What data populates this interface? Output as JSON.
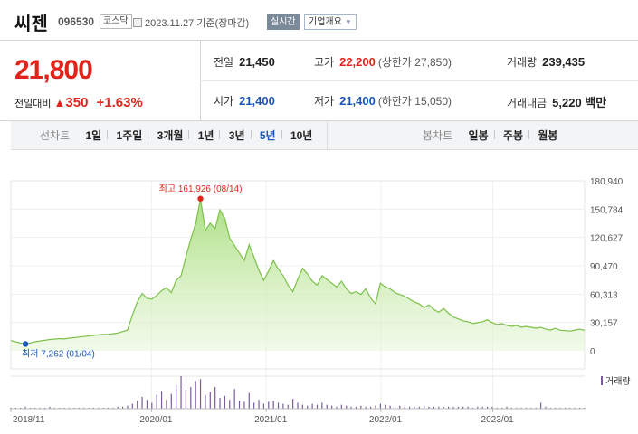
{
  "header": {
    "name": "씨젠",
    "code": "096530",
    "market": "코스닥",
    "date": "2023.11.27 기준(장마감)",
    "realtime": "실시간",
    "company_info": "기업개요"
  },
  "summary": {
    "price": "21,800",
    "change_label": "전일대비",
    "change": "350",
    "change_rate": "+1.63%",
    "prev_close_label": "전일",
    "prev_close": "21,450",
    "high_label": "고가",
    "high": "22,200",
    "upper_limit": "(상한가 27,850)",
    "volume_label": "거래량",
    "volume": "239,435",
    "open_label": "시가",
    "open": "21,400",
    "low_label": "저가",
    "low": "21,400",
    "lower_limit": "(하한가 15,050)",
    "amount_label": "거래대금",
    "amount": "5,220 백만"
  },
  "tabs": {
    "line_label": "선차트",
    "line_periods": [
      "1일",
      "1주일",
      "3개월",
      "1년",
      "3년",
      "5년",
      "10년"
    ],
    "active_period": "5년",
    "candle_label": "봉차트",
    "candle_periods": [
      "일봉",
      "주봉",
      "월봉"
    ]
  },
  "chart_data": {
    "type": "area",
    "x_ticks": [
      "2018/11",
      "2020/01",
      "2021/01",
      "2022/01",
      "2023/01"
    ],
    "y_ticks": [
      "180,940",
      "150,784",
      "120,627",
      "90,470",
      "60,313",
      "30,157",
      "0"
    ],
    "ylim": [
      0,
      180940
    ],
    "grid": true,
    "accent_color": "#7cc04a",
    "max_label": "최고 161,926 (08/14)",
    "min_label": "최저 7,262 (01/04)",
    "volume_legend": "거래량",
    "series": [
      {
        "values": [
          11000,
          9500,
          8200,
          7262,
          8400,
          9600,
          10500,
          11200,
          12000,
          12400,
          13000,
          12600,
          13500,
          14000,
          14600,
          15200,
          15800,
          16400,
          17000,
          17500,
          17600,
          18200,
          19000,
          20500,
          22000,
          38000,
          52000,
          61000,
          56000,
          55000,
          59000,
          64000,
          67000,
          62000,
          75000,
          80000,
          100000,
          119000,
          135000,
          161926,
          128000,
          136000,
          130000,
          150000,
          141000,
          120000,
          112000,
          104000,
          96000,
          113000,
          100000,
          86000,
          75000,
          85000,
          96000,
          87000,
          80000,
          70000,
          63000,
          76000,
          88000,
          82000,
          74000,
          70000,
          80000,
          76000,
          72000,
          68000,
          74000,
          66000,
          61000,
          63000,
          60000,
          66000,
          56000,
          50000,
          72000,
          68000,
          66000,
          62000,
          60000,
          58000,
          55000,
          52000,
          50000,
          46000,
          49000,
          44000,
          41000,
          45000,
          40000,
          36000,
          34000,
          32000,
          31000,
          29000,
          30000,
          31000,
          33000,
          30000,
          28000,
          29000,
          27000,
          26000,
          27000,
          25000,
          26000,
          25000,
          24000,
          25000,
          23000,
          22000,
          24000,
          21800,
          21500,
          21000,
          22000,
          23000,
          21800
        ]
      }
    ],
    "volume": [
      1,
      1,
      1,
      2,
      1,
      1,
      1,
      1,
      2,
      1,
      1,
      1,
      1,
      1,
      1,
      1,
      1,
      1,
      1,
      1,
      1,
      1,
      2,
      2,
      3,
      5,
      8,
      12,
      9,
      6,
      14,
      18,
      9,
      15,
      24,
      33,
      19,
      22,
      28,
      30,
      14,
      17,
      22,
      11,
      13,
      9,
      20,
      8,
      7,
      16,
      6,
      9,
      5,
      7,
      8,
      6,
      5,
      4,
      10,
      6,
      4,
      3,
      5,
      4,
      6,
      4,
      3,
      2,
      4,
      3,
      2,
      2,
      3,
      2,
      2,
      3,
      5,
      4,
      3,
      2,
      3,
      2,
      2,
      2,
      2,
      3,
      2,
      2,
      2,
      2,
      2,
      2,
      2,
      2,
      2,
      1,
      2,
      2,
      2,
      2,
      1,
      1,
      2,
      1,
      1,
      1,
      1,
      1,
      1,
      6,
      2,
      1,
      1,
      1,
      1,
      1,
      1,
      1,
      1
    ]
  }
}
